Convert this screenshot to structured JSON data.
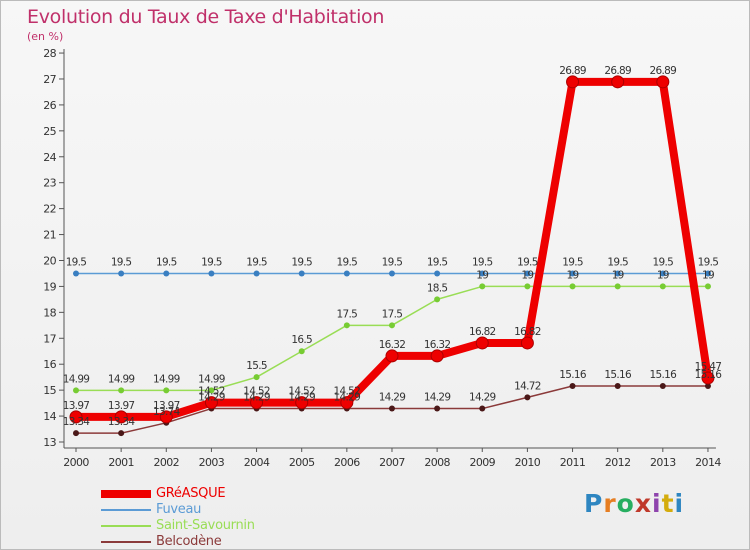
{
  "title": "Evolution du Taux de Taxe d'Habitation",
  "unit_label": "(en %)",
  "logo_text": "Proxiti",
  "chart_data": {
    "type": "line",
    "x": [
      "2000",
      "2001",
      "2002",
      "2003",
      "2004",
      "2005",
      "2006",
      "2007",
      "2008",
      "2009",
      "2010",
      "2011",
      "2012",
      "2013",
      "2014"
    ],
    "ylim": [
      13,
      28
    ],
    "yticks": [
      13,
      14,
      15,
      16,
      17,
      18,
      19,
      20,
      21,
      22,
      23,
      24,
      25,
      26,
      27,
      28
    ],
    "grid": false,
    "legend_position": "bottom-left",
    "series": [
      {
        "name": "GRéASQUE",
        "color": "#ee0000",
        "values": [
          13.97,
          13.97,
          13.97,
          14.52,
          14.52,
          14.52,
          14.52,
          16.32,
          16.32,
          16.82,
          16.82,
          26.89,
          26.89,
          26.89,
          15.47
        ],
        "labels": [
          "13.97",
          "13.97",
          "13.97",
          "14.52",
          "14.52",
          "14.52",
          "14.52",
          "16.32",
          "16.32",
          "16.82",
          "16.82",
          "26.89",
          "26.89",
          "26.89",
          "15.47"
        ]
      },
      {
        "name": "Fuveau",
        "color": "#5b9bd5",
        "values": [
          19.5,
          19.5,
          19.5,
          19.5,
          19.5,
          19.5,
          19.5,
          19.5,
          19.5,
          19.5,
          19.5,
          19.5,
          19.5,
          19.5,
          19.5
        ],
        "labels": [
          "19.5",
          "19.5",
          "19.5",
          "19.5",
          "19.5",
          "19.5",
          "19.5",
          "19.5",
          "19.5",
          "19.5",
          "19.5",
          "19.5",
          "19.5",
          "19.5",
          "19.5"
        ]
      },
      {
        "name": "Saint-Savournin",
        "color": "#99dd55",
        "values": [
          14.99,
          14.99,
          14.99,
          14.99,
          15.5,
          16.5,
          17.5,
          17.5,
          18.5,
          19,
          19,
          19,
          19,
          19,
          19
        ],
        "labels": [
          "14.99",
          "14.99",
          "14.99",
          "14.99",
          "15.5",
          "16.5",
          "17.5",
          "17.5",
          "18.5",
          "19",
          "19",
          "19",
          "19",
          "19",
          "19"
        ]
      },
      {
        "name": "Belcodène",
        "color": "#8b3a3a",
        "values": [
          13.34,
          13.34,
          13.74,
          14.29,
          14.29,
          14.29,
          14.29,
          14.29,
          14.29,
          14.29,
          14.72,
          15.16,
          15.16,
          15.16,
          15.16
        ],
        "labels": [
          "13.34",
          "13.34",
          "13.74",
          "14.29",
          "14.29",
          "14.29",
          "14.29",
          "14.29",
          "14.29",
          "14.29",
          "14.72",
          "15.16",
          "15.16",
          "15.16",
          "15.16"
        ]
      }
    ]
  }
}
